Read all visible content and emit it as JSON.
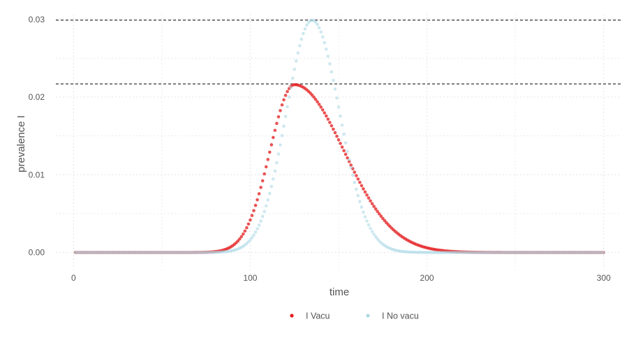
{
  "chart_data": {
    "type": "scatter",
    "title": "",
    "xlabel": "time",
    "ylabel": "prevalence I",
    "xlim": [
      -10,
      310
    ],
    "ylim": [
      -0.0022,
      0.0307
    ],
    "x_ticks": [
      0,
      100,
      200,
      300
    ],
    "x_tick_labels": [
      "0",
      "100",
      "200",
      "300"
    ],
    "y_ticks": [
      0,
      0.01,
      0.02,
      0.03
    ],
    "y_tick_labels": [
      "0.00",
      "0.01",
      "0.02",
      "0.03"
    ],
    "grid": true,
    "legend_position": "bottom",
    "reference_lines": [
      {
        "orientation": "horizontal",
        "y": 0.0299,
        "style": "dashed",
        "color": "#000000"
      },
      {
        "orientation": "horizontal",
        "y": 0.0217,
        "style": "dashed",
        "color": "#000000"
      }
    ],
    "series": [
      {
        "name": "I Vacu",
        "color": "#e41a1c",
        "x_range": [
          1,
          300
        ],
        "x_step": 1,
        "curve": "skewed-peak",
        "peak_x": 125,
        "peak_y": 0.0216,
        "rise_width": 13.8,
        "fall_width": 28,
        "key_points": [
          [
            1,
            0
          ],
          [
            50,
            0.0001
          ],
          [
            80,
            0.0016
          ],
          [
            100,
            0.0062
          ],
          [
            110,
            0.0126
          ],
          [
            125,
            0.0216
          ],
          [
            140,
            0.0178
          ],
          [
            160,
            0.0092
          ],
          [
            180,
            0.003
          ],
          [
            200,
            0.0007
          ],
          [
            250,
            0.0001
          ],
          [
            300,
            0
          ]
        ]
      },
      {
        "name": "I No vacu",
        "color": "#add8e6",
        "x_range": [
          1,
          300
        ],
        "x_step": 1,
        "curve": "skewed-peak",
        "peak_x": 135,
        "peak_y": 0.0299,
        "rise_width": 14.5,
        "fall_width": 15.5,
        "key_points": [
          [
            1,
            0
          ],
          [
            50,
            0.0001
          ],
          [
            80,
            0.0016
          ],
          [
            100,
            0.0062
          ],
          [
            120,
            0.0205
          ],
          [
            135,
            0.0299
          ],
          [
            150,
            0.0209
          ],
          [
            170,
            0.0065
          ],
          [
            190,
            0.0011
          ],
          [
            220,
            0.0001
          ],
          [
            300,
            0
          ]
        ]
      }
    ]
  }
}
